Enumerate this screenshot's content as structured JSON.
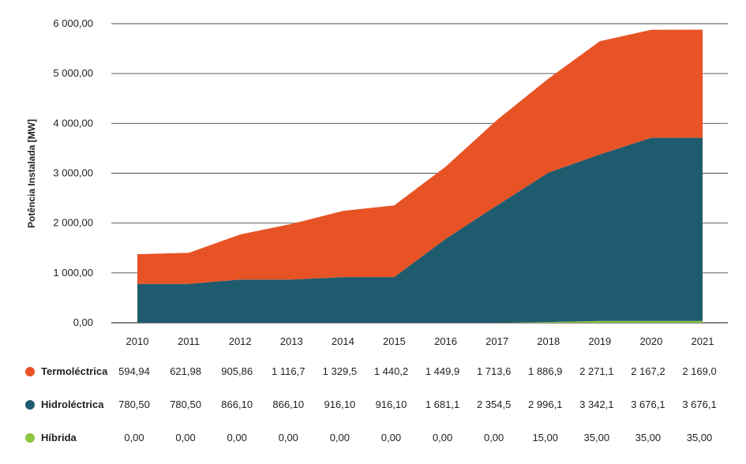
{
  "chart_data": {
    "type": "area",
    "stacked": true,
    "ylabel": "Potência Instalada [MW]",
    "ylim": [
      0,
      6000
    ],
    "y_ticks": [
      "0,00",
      "1 000,00",
      "2 000,00",
      "3 000,00",
      "4 000,00",
      "5 000,00",
      "6 000,00"
    ],
    "y_tick_values": [
      0,
      1000,
      2000,
      3000,
      4000,
      5000,
      6000
    ],
    "categories": [
      "2010",
      "2011",
      "2012",
      "2013",
      "2014",
      "2015",
      "2016",
      "2017",
      "2018",
      "2019",
      "2020",
      "2021"
    ],
    "grid": true,
    "series": [
      {
        "name": "Termoléctrica",
        "color": "#e85325",
        "values": [
          594.94,
          621.98,
          905.86,
          1116.7,
          1329.5,
          1440.2,
          1449.9,
          1713.6,
          1886.9,
          2271.1,
          2167.2,
          2169.0
        ],
        "labels": [
          "594,94",
          "621,98",
          "905,86",
          "1 116,7",
          "1 329,5",
          "1 440,2",
          "1 449,9",
          "1 713,6",
          "1 886,9",
          "2 271,1",
          "2 167,2",
          "2 169,0"
        ]
      },
      {
        "name": "Hidroléctrica",
        "color": "#1f5b6f",
        "values": [
          780.5,
          780.5,
          866.1,
          866.1,
          916.1,
          916.1,
          1681.1,
          2354.5,
          2996.1,
          3342.1,
          3676.1,
          3676.1
        ],
        "labels": [
          "780,50",
          "780,50",
          "866,10",
          "866,10",
          "916,10",
          "916,10",
          "1 681,1",
          "2 354,5",
          "2 996,1",
          "3 342,1",
          "3 676,1",
          "3 676,1"
        ]
      },
      {
        "name": "Híbrida",
        "color": "#8dc63f",
        "values": [
          0,
          0,
          0,
          0,
          0,
          0,
          0,
          0,
          15,
          35,
          35,
          35
        ],
        "labels": [
          "0,00",
          "0,00",
          "0,00",
          "0,00",
          "0,00",
          "0,00",
          "0,00",
          "0,00",
          "15,00",
          "35,00",
          "35,00",
          "35,00"
        ]
      }
    ]
  }
}
